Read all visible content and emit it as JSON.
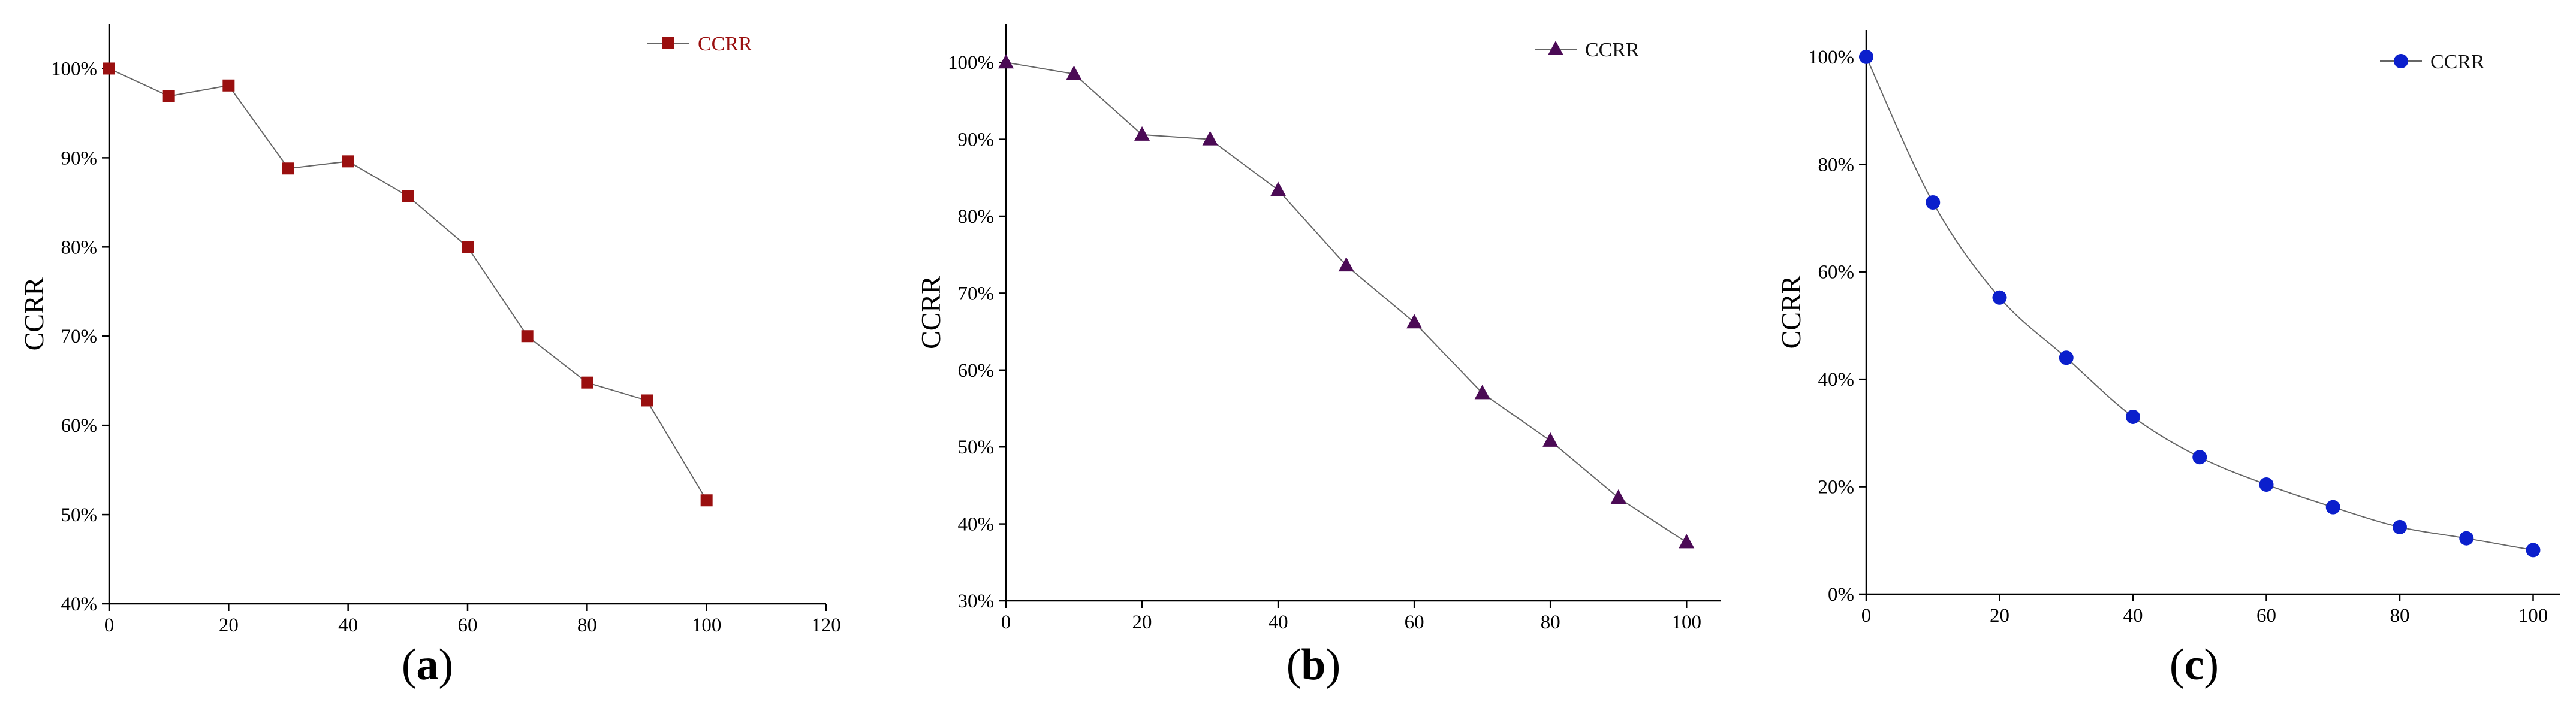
{
  "chart_data": [
    {
      "panel_label": "a",
      "type": "line",
      "ylabel": "CCRR",
      "xlim": [
        0,
        120
      ],
      "xticks": [
        0,
        20,
        40,
        60,
        80,
        100,
        120
      ],
      "ylim": [
        40,
        105
      ],
      "yticks": [
        40,
        50,
        60,
        70,
        80,
        90,
        100
      ],
      "ytick_suffix": "%",
      "legend_position": "top-right",
      "grid": false,
      "series": [
        {
          "name": "CCRR",
          "marker": "square",
          "marker_color": "#9a0f0f",
          "legend_text_color": "#9a0f0f",
          "line_color": "#666666",
          "x": [
            0,
            10,
            20,
            30,
            40,
            50,
            60,
            70,
            80,
            90,
            100
          ],
          "y": [
            100,
            96.9,
            98.1,
            88.8,
            89.6,
            85.7,
            80.0,
            70.0,
            64.8,
            62.8,
            51.6
          ]
        }
      ]
    },
    {
      "panel_label": "b",
      "type": "line",
      "ylabel": "CCRR",
      "xlim": [
        0,
        105
      ],
      "xticks": [
        0,
        20,
        40,
        60,
        80,
        100
      ],
      "ylim": [
        30,
        105
      ],
      "yticks": [
        30,
        40,
        50,
        60,
        70,
        80,
        90,
        100
      ],
      "ytick_suffix": "%",
      "legend_position": "top-right",
      "grid": false,
      "series": [
        {
          "name": "CCRR",
          "marker": "triangle",
          "marker_color": "#4b0a55",
          "legend_text_color": "#111111",
          "line_color": "#666666",
          "x": [
            0,
            10,
            20,
            30,
            40,
            50,
            60,
            70,
            80,
            90,
            100
          ],
          "y": [
            100,
            98.5,
            90.6,
            90.0,
            83.4,
            73.6,
            66.2,
            57.0,
            50.8,
            43.4,
            37.6
          ]
        }
      ]
    },
    {
      "panel_label": "c",
      "type": "line",
      "ylabel": "CCRR",
      "xlim": [
        0,
        104
      ],
      "xticks": [
        0,
        20,
        40,
        60,
        80,
        100
      ],
      "ylim": [
        0,
        105
      ],
      "yticks": [
        0,
        20,
        40,
        60,
        80,
        100
      ],
      "ytick_suffix": "%",
      "legend_position": "top-right",
      "grid": false,
      "series": [
        {
          "name": "CCRR",
          "marker": "circle",
          "marker_color": "#0b1fcc",
          "legend_text_color": "#111111",
          "line_color": "#666666",
          "smooth": true,
          "x": [
            0,
            10,
            20,
            30,
            40,
            50,
            60,
            70,
            80,
            90,
            100
          ],
          "y": [
            100,
            72.9,
            55.2,
            44.0,
            33.0,
            25.5,
            20.4,
            16.2,
            12.5,
            10.4,
            8.2
          ]
        }
      ]
    }
  ]
}
